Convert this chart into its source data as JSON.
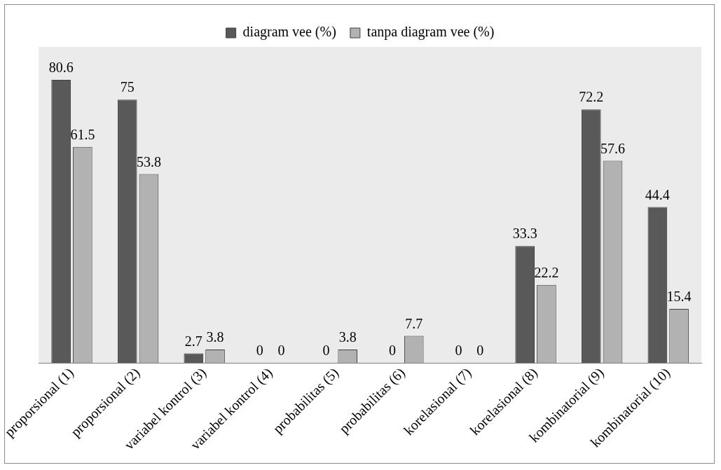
{
  "chart_data": {
    "type": "bar",
    "categories": [
      "proporsional (1)",
      "proporsional (2)",
      "variabel kontrol (3)",
      "variabel kontrol (4)",
      "probabilitas (5)",
      "probabilitas (6)",
      "korelasional (7)",
      "korelasional (8)",
      "kombinatorial (9)",
      "kombinatorial (10)"
    ],
    "series": [
      {
        "name": "diagram vee (%)",
        "color": "#595959",
        "values": [
          80.6,
          75,
          2.7,
          0,
          0,
          0,
          0,
          33.3,
          72.2,
          44.4
        ]
      },
      {
        "name": "tanpa diagram vee (%)",
        "color": "#b2b2b2",
        "values": [
          61.5,
          53.8,
          3.8,
          0,
          3.8,
          7.7,
          0,
          22.2,
          57.6,
          15.4
        ]
      }
    ],
    "data_labels": true,
    "legend": "top",
    "grid": false
  }
}
